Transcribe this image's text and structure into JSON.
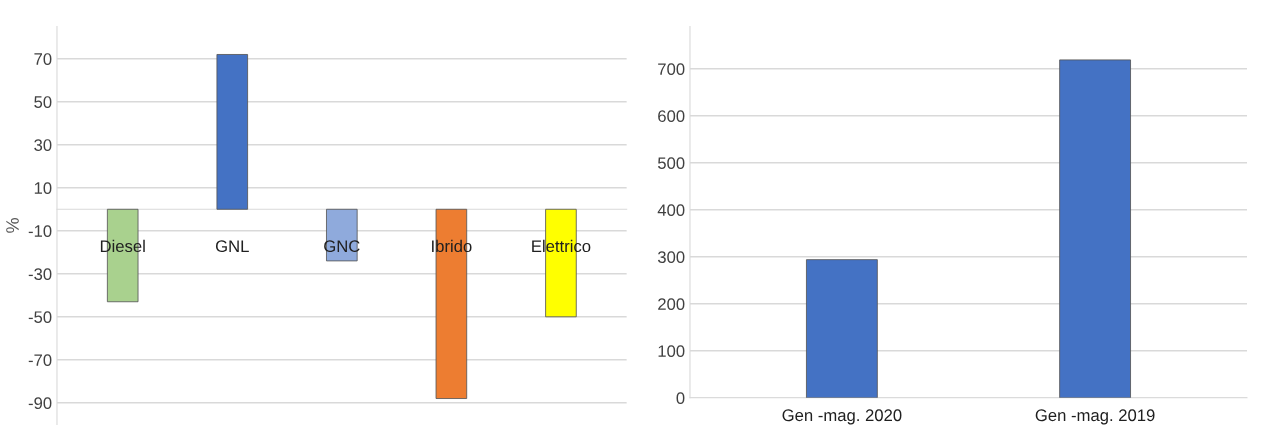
{
  "chart_data": [
    {
      "type": "bar",
      "ylabel": "%",
      "categories": [
        "Diesel",
        "GNL",
        "GNC",
        "Ibrido",
        "Elettrico"
      ],
      "values": [
        -43,
        72,
        -24,
        -88,
        -50
      ],
      "colors": [
        "#a9d18e",
        "#4472c4",
        "#8faadc",
        "#ed7d31",
        "#ffff00"
      ],
      "ylim": [
        -100,
        85
      ],
      "yticks": [
        -90,
        -70,
        -50,
        -30,
        -10,
        10,
        30,
        50,
        70
      ],
      "grid": "y"
    },
    {
      "type": "bar",
      "categories": [
        "Gen -mag. 2020",
        "Gen -mag. 2019"
      ],
      "values": [
        294,
        719
      ],
      "color": "#4472c4",
      "ylim": [
        0,
        790
      ],
      "yticks": [
        0,
        100,
        200,
        300,
        400,
        500,
        600,
        700
      ],
      "grid": "y"
    }
  ]
}
